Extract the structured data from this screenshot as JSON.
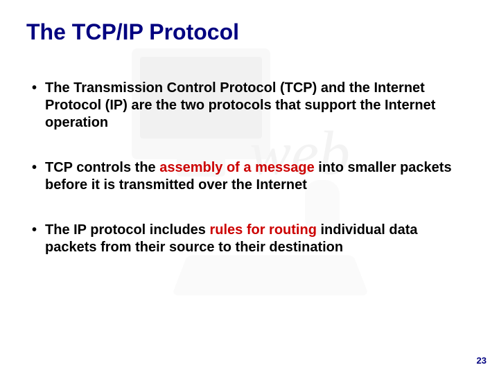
{
  "title": {
    "text": "The TCP/IP Protocol",
    "color": "#000080",
    "fontsize": 32
  },
  "bullets": {
    "fontsize": 20,
    "text_color": "#000000",
    "highlight_color": "#cc0000",
    "bullet_char": "•",
    "items": [
      {
        "segments": [
          {
            "text": "The Transmission Control Protocol (TCP) and the Internet Protocol (IP) are the two protocols that support the Internet operation",
            "highlight": false
          }
        ]
      },
      {
        "segments": [
          {
            "text": "TCP controls the ",
            "highlight": false
          },
          {
            "text": "assembly of a message",
            "highlight": true
          },
          {
            "text": " into smaller packets before it is transmitted over the Internet",
            "highlight": false
          }
        ]
      },
      {
        "segments": [
          {
            "text": "The IP protocol includes ",
            "highlight": false
          },
          {
            "text": "rules for routing",
            "highlight": true
          },
          {
            "text": " individual data packets from their source to their destination",
            "highlight": false
          }
        ]
      }
    ]
  },
  "page_number": {
    "value": "23",
    "color": "#000080",
    "fontsize": 13
  },
  "background": {
    "color": "#ffffff"
  }
}
